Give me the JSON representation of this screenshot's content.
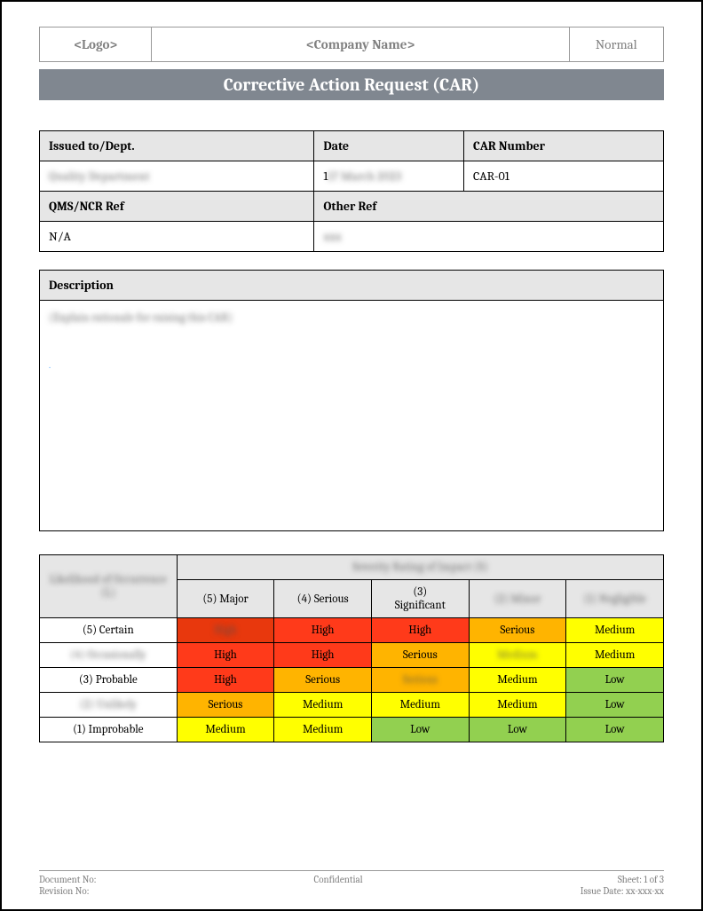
{
  "header": {
    "logo": "<Logo>",
    "company": "<Company Name>",
    "status": "Normal"
  },
  "title": "Corrective Action Request (CAR)",
  "info": {
    "issued_to_label": "Issued to/Dept.",
    "date_label": "Date",
    "car_number_label": "CAR Number",
    "issued_to": "Quality Department",
    "date": "17 March 2023",
    "date_visible_prefix": "1",
    "car_number": "CAR-01",
    "qms_label": "QMS/NCR Ref",
    "other_ref_label": "Other Ref",
    "qms": "N/A",
    "other_ref": "xxx"
  },
  "description": {
    "label": "Description",
    "placeholder": "(Explain rationale for raising this CAR)"
  },
  "risk": {
    "likelihood_header": "Likelihood of Occurrence (L)",
    "severity_header": "Severity Rating of Impact (S)",
    "cols": [
      {
        "label": "(5) Major"
      },
      {
        "label": "(4) Serious"
      },
      {
        "label": "(3) Significant"
      },
      {
        "label": "(2) Minor",
        "blurred": true
      },
      {
        "label": "(1) Negligible",
        "blurred": true
      }
    ],
    "rows": [
      {
        "label": "(5) Certain",
        "blurred": false,
        "cells": [
          {
            "text": "High",
            "color": "#e8380d",
            "blurred": true
          },
          {
            "text": "High",
            "color": "#ff3a1a"
          },
          {
            "text": "High",
            "color": "#ff3a1a"
          },
          {
            "text": "Serious",
            "color": "#ffb400"
          },
          {
            "text": "Medium",
            "color": "#ffff00"
          }
        ]
      },
      {
        "label": "(4) Occasionally",
        "blurred": true,
        "cells": [
          {
            "text": "High",
            "color": "#ff3a1a"
          },
          {
            "text": "High",
            "color": "#ff3a1a"
          },
          {
            "text": "Serious",
            "color": "#ffb400"
          },
          {
            "text": "Medium",
            "color": "#ffff00",
            "blurred": true
          },
          {
            "text": "Medium",
            "color": "#ffff00"
          }
        ]
      },
      {
        "label": "(3) Probable",
        "blurred": false,
        "cells": [
          {
            "text": "High",
            "color": "#ff3a1a"
          },
          {
            "text": "Serious",
            "color": "#ffb400"
          },
          {
            "text": "Serious",
            "color": "#ffb400",
            "blurred": true
          },
          {
            "text": "Medium",
            "color": "#ffff00"
          },
          {
            "text": "Low",
            "color": "#92d050"
          }
        ]
      },
      {
        "label": "(2) Unlikely",
        "blurred": true,
        "cells": [
          {
            "text": "Serious",
            "color": "#ffb400"
          },
          {
            "text": "Medium",
            "color": "#ffff00"
          },
          {
            "text": "Medium",
            "color": "#ffff00"
          },
          {
            "text": "Medium",
            "color": "#ffff00"
          },
          {
            "text": "Low",
            "color": "#92d050"
          }
        ]
      },
      {
        "label": "(1) Improbable",
        "blurred": false,
        "cells": [
          {
            "text": "Medium",
            "color": "#ffff00"
          },
          {
            "text": "Medium",
            "color": "#ffff00"
          },
          {
            "text": "Low",
            "color": "#92d050"
          },
          {
            "text": "Low",
            "color": "#92d050"
          },
          {
            "text": "Low",
            "color": "#92d050"
          }
        ]
      }
    ]
  },
  "footer": {
    "doc_no": "Document No:",
    "rev_no": "Revision No:",
    "confidential": "Confidential",
    "sheet": "Sheet: 1 of 3",
    "issue_date": "Issue Date: xx-xxx-xx"
  }
}
